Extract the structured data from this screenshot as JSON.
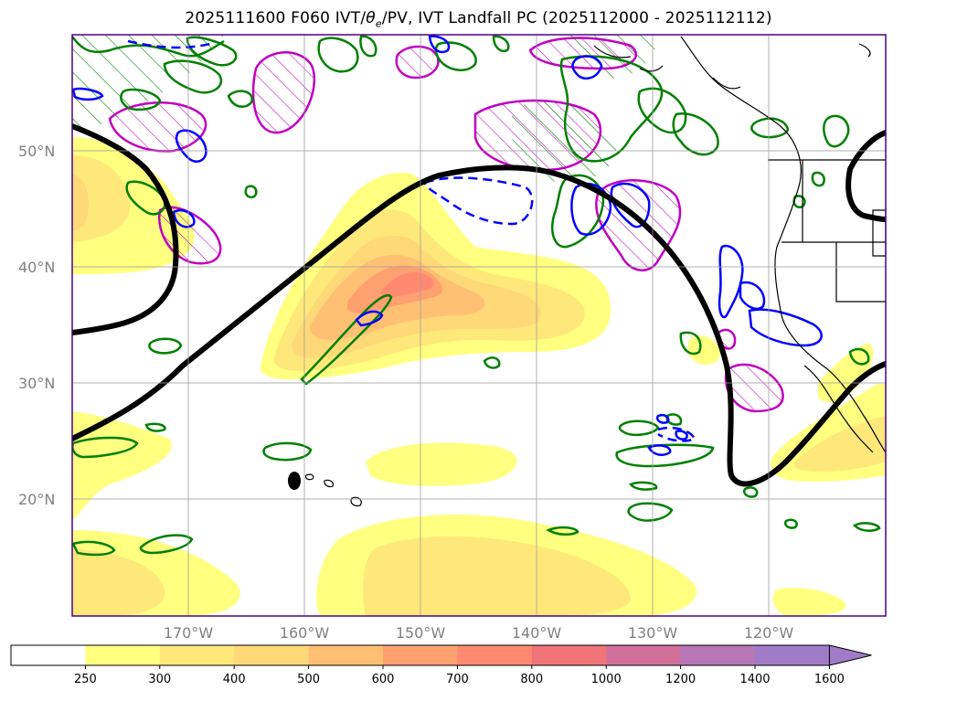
{
  "title_main": "2025111600 F060 IVT/",
  "title_theta": "θ",
  "title_sub": "e",
  "title_rest": "/PV, IVT Landfall PC (2025112000 - 2025112112)",
  "lat_labels": [
    "50°N",
    "40°N",
    "30°N",
    "20°N"
  ],
  "lon_labels": [
    "170°W",
    "160°W",
    "150°W",
    "140°W",
    "130°W",
    "120°W"
  ],
  "colorbar": {
    "ticks": [
      "250",
      "300",
      "400",
      "500",
      "600",
      "700",
      "800",
      "1000",
      "1200",
      "1400",
      "1600"
    ],
    "colors": [
      "#ffffff",
      "#ffff80",
      "#ffe87a",
      "#ffd878",
      "#ffc074",
      "#ffa070",
      "#ff8a70",
      "#f07478",
      "#d0709a",
      "#b878b8",
      "#a07cc8"
    ],
    "extend": "max"
  },
  "contour_colors": {
    "pv_theta_green": "#008000",
    "pv_blue": "#0000ff",
    "landfall_magenta": "#c000c0",
    "ivt_black": "#000000"
  }
}
